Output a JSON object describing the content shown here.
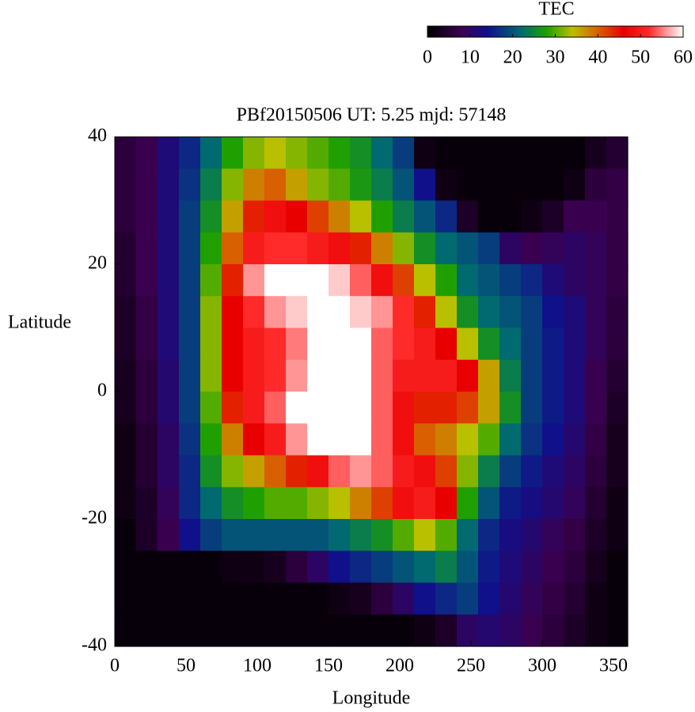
{
  "chart_data": {
    "type": "heatmap",
    "title": "PBf20150506  UT: 5.25  mjd: 57148",
    "xlabel": "Longitude",
    "ylabel": "Latitude",
    "colorbar_label": "TEC",
    "x": [
      7.5,
      22.5,
      37.5,
      52.5,
      67.5,
      82.5,
      97.5,
      112.5,
      127.5,
      142.5,
      157.5,
      172.5,
      187.5,
      202.5,
      217.5,
      232.5,
      247.5,
      262.5,
      277.5,
      292.5,
      307.5,
      322.5,
      337.5,
      352.5
    ],
    "y": [
      37.5,
      32.5,
      27.5,
      22.5,
      17.5,
      12.5,
      7.5,
      2.5,
      -2.5,
      -7.5,
      -12.5,
      -17.5,
      -22.5,
      -27.5,
      -32.5,
      -37.5
    ],
    "z": [
      [
        6,
        8,
        12,
        16,
        22,
        28,
        32,
        34,
        32,
        30,
        28,
        26,
        22,
        18,
        2,
        1,
        1,
        1,
        1,
        1,
        1,
        1,
        3,
        5
      ],
      [
        6,
        8,
        12,
        17,
        24,
        32,
        38,
        40,
        36,
        32,
        30,
        27,
        24,
        20,
        14,
        2,
        1,
        1,
        1,
        1,
        1,
        2,
        6,
        7
      ],
      [
        6,
        8,
        12,
        18,
        26,
        36,
        44,
        48,
        46,
        42,
        38,
        34,
        28,
        24,
        20,
        16,
        4,
        1,
        1,
        2,
        4,
        8,
        8,
        7
      ],
      [
        5,
        8,
        12,
        18,
        28,
        40,
        50,
        52,
        52,
        50,
        48,
        44,
        38,
        32,
        26,
        22,
        20,
        18,
        10,
        8,
        9,
        10,
        9,
        7
      ],
      [
        5,
        8,
        12,
        18,
        30,
        44,
        56,
        60,
        60,
        60,
        58,
        54,
        48,
        42,
        34,
        28,
        22,
        20,
        18,
        16,
        12,
        10,
        9,
        7
      ],
      [
        4,
        7,
        12,
        18,
        32,
        46,
        52,
        56,
        58,
        60,
        60,
        58,
        56,
        52,
        44,
        34,
        26,
        22,
        20,
        18,
        14,
        12,
        9,
        6
      ],
      [
        4,
        7,
        12,
        18,
        32,
        46,
        50,
        52,
        55,
        60,
        60,
        60,
        54,
        52,
        50,
        46,
        34,
        26,
        22,
        18,
        15,
        12,
        9,
        6
      ],
      [
        3,
        6,
        11,
        18,
        32,
        46,
        50,
        52,
        56,
        60,
        60,
        60,
        54,
        50,
        50,
        50,
        46,
        36,
        24,
        18,
        15,
        12,
        8,
        5
      ],
      [
        3,
        6,
        11,
        18,
        30,
        44,
        50,
        54,
        60,
        60,
        60,
        60,
        54,
        48,
        44,
        44,
        42,
        36,
        26,
        18,
        15,
        12,
        8,
        4
      ],
      [
        2,
        5,
        10,
        17,
        28,
        38,
        46,
        50,
        56,
        60,
        60,
        60,
        54,
        48,
        40,
        38,
        34,
        30,
        22,
        17,
        14,
        11,
        7,
        3
      ],
      [
        2,
        5,
        10,
        16,
        26,
        32,
        36,
        40,
        44,
        48,
        54,
        56,
        54,
        50,
        48,
        42,
        32,
        24,
        18,
        15,
        12,
        10,
        6,
        3
      ],
      [
        2,
        4,
        9,
        16,
        22,
        26,
        28,
        30,
        30,
        32,
        34,
        38,
        42,
        48,
        50,
        46,
        28,
        20,
        15,
        13,
        11,
        9,
        5,
        2
      ],
      [
        1,
        4,
        8,
        14,
        18,
        20,
        20,
        20,
        20,
        20,
        22,
        24,
        26,
        30,
        34,
        30,
        22,
        16,
        13,
        11,
        9,
        7,
        4,
        2
      ],
      [
        1,
        1,
        1,
        1,
        1,
        2,
        2,
        3,
        6,
        10,
        14,
        16,
        18,
        20,
        22,
        24,
        20,
        15,
        12,
        10,
        8,
        6,
        3,
        1
      ],
      [
        1,
        1,
        1,
        1,
        1,
        1,
        1,
        1,
        1,
        1,
        2,
        3,
        6,
        10,
        14,
        16,
        18,
        14,
        11,
        9,
        7,
        5,
        2,
        1
      ],
      [
        1,
        1,
        1,
        1,
        1,
        1,
        1,
        1,
        1,
        1,
        1,
        1,
        1,
        1,
        2,
        4,
        10,
        11,
        10,
        8,
        6,
        4,
        2,
        1
      ]
    ],
    "cell_width": 15,
    "cell_height": 5,
    "xlim": [
      0,
      360
    ],
    "ylim": [
      -40,
      40
    ],
    "xticks": [
      0,
      50,
      100,
      150,
      200,
      250,
      300,
      350
    ],
    "yticks": [
      -40,
      -20,
      0,
      20,
      40
    ],
    "zlim": [
      0,
      60
    ],
    "zticks": [
      0,
      10,
      20,
      30,
      40,
      50,
      60
    ],
    "colormap": [
      {
        "value": 0,
        "color": "#000000"
      },
      {
        "value": 8,
        "color": "#3a0050"
      },
      {
        "value": 14,
        "color": "#10108a"
      },
      {
        "value": 22,
        "color": "#006a70"
      },
      {
        "value": 28,
        "color": "#20a000"
      },
      {
        "value": 34,
        "color": "#b8c000"
      },
      {
        "value": 40,
        "color": "#d86000"
      },
      {
        "value": 46,
        "color": "#e80000"
      },
      {
        "value": 52,
        "color": "#ff2a2a"
      },
      {
        "value": 60,
        "color": "#ffffff"
      }
    ]
  }
}
